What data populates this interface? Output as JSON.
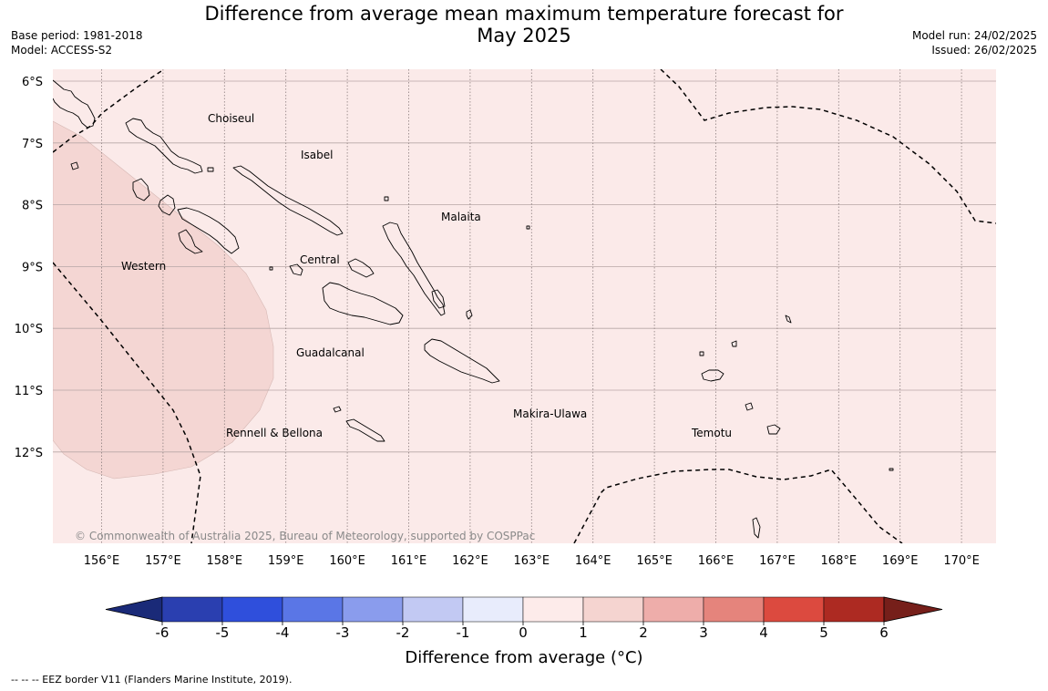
{
  "title_line1": "Difference from average mean maximum temperature forecast for",
  "title_line2": "May 2025",
  "base_period": "Base period: 1981-2018",
  "model": "Model: ACCESS-S2",
  "model_run": "Model run: 24/02/2025",
  "issued": "Issued: 26/02/2025",
  "copyright": "© Commonwealth of Australia 2025, Bureau of Meteorology, supported by COSPPac",
  "footnote": "-- -- -- EEZ border V11 (Flanders Marine Institute, 2019).",
  "map": {
    "lat_labels": [
      "6°S",
      "7°S",
      "8°S",
      "9°S",
      "10°S",
      "11°S",
      "12°S"
    ],
    "lon_labels": [
      "156°E",
      "157°E",
      "158°E",
      "159°E",
      "160°E",
      "161°E",
      "162°E",
      "163°E",
      "164°E",
      "165°E",
      "166°E",
      "167°E",
      "168°E",
      "169°E",
      "170°E"
    ],
    "regions": [
      "Choiseul",
      "Isabel",
      "Malaita",
      "Western",
      "Central",
      "Guadalcanal",
      "Rennell & Bellona",
      "Makira-Ulawa",
      "Temotu"
    ],
    "background_color": "#fbeae9",
    "anomaly_area_color": "#f4d6d3"
  },
  "legend": {
    "title": "Difference from average (°C)",
    "ticks": [
      "-6",
      "-5",
      "-4",
      "-3",
      "-2",
      "-1",
      "0",
      "1",
      "2",
      "3",
      "4",
      "5",
      "6"
    ],
    "colors": [
      "#1a2a78",
      "#2a3fb0",
      "#2f4fdc",
      "#5a76e6",
      "#8a9ced",
      "#c2c9f3",
      "#e8ecfc",
      "#fdebea",
      "#f5d4d0",
      "#eeadaa",
      "#e5847c",
      "#dc4a3f",
      "#ad2a22",
      "#761f1a"
    ]
  }
}
